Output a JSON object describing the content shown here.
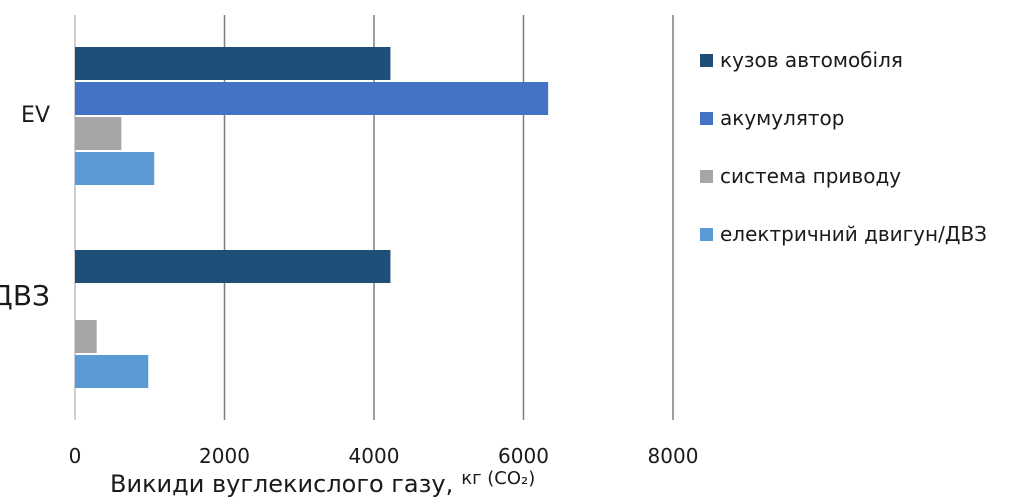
{
  "chart_data": {
    "type": "bar",
    "orientation": "horizontal",
    "categories": [
      "EV",
      "ДВЗ"
    ],
    "series": [
      {
        "name": "кузов автомобіля",
        "color": "#1f4e79",
        "values": [
          4220,
          4220
        ]
      },
      {
        "name": "акумулятор",
        "color": "#4472c4",
        "values": [
          6330,
          0
        ]
      },
      {
        "name": "система приводу",
        "color": "#a6a6a6",
        "values": [
          620,
          290
        ]
      },
      {
        "name": "електричний двигун/ДВЗ",
        "color": "#5b9bd5",
        "values": [
          1060,
          980
        ]
      }
    ],
    "xlim": [
      0,
      8000
    ],
    "xticks": [
      0,
      2000,
      4000,
      6000,
      8000
    ],
    "xtick_labels": [
      "0",
      "2000",
      "4000",
      "6000",
      "8000"
    ],
    "xlabel": "Викиди вуглекислого газу",
    "xlabel_separator": ",",
    "xlabel_unit": "кг (CO₂)",
    "grid": "vertical",
    "legend_position": "right"
  }
}
